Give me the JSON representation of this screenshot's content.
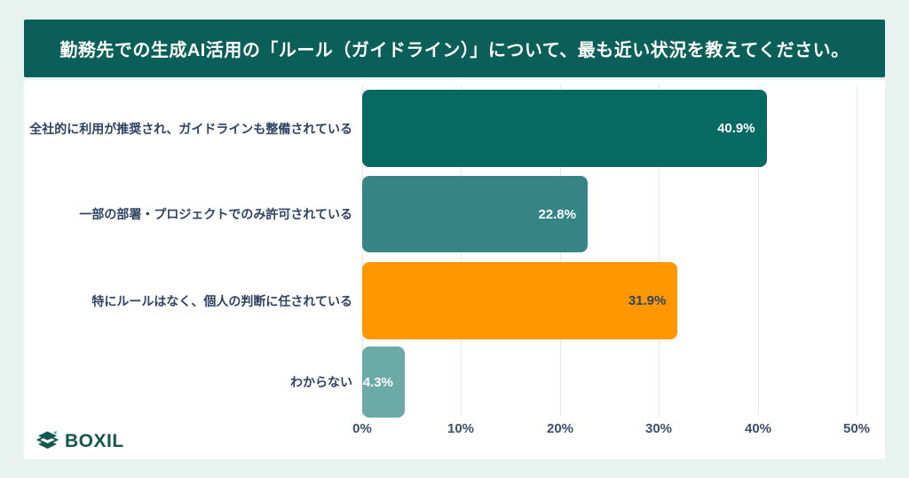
{
  "header": {
    "title": "勤務先での生成AI活用の「ルール（ガイドライン）」について、最も近い状況を教えてください。"
  },
  "chart_data": {
    "type": "bar",
    "orientation": "horizontal",
    "title": "勤務先での生成AI活用の「ルール（ガイドライン）」について、最も近い状況を教えてください。",
    "categories": [
      "全社的に利用が推奨され、ガイドラインも整備されている",
      "一部の部署・プロジェクトでのみ許可されている",
      "特にルールはなく、個人の判断に任されている",
      "わからない"
    ],
    "values": [
      40.9,
      22.8,
      31.9,
      4.3
    ],
    "value_labels": [
      "40.9%",
      "22.8%",
      "31.9%",
      "4.3%"
    ],
    "bar_colors": [
      "#066a63",
      "#368586",
      "#ff9800",
      "#6caaa8"
    ],
    "value_label_colors": [
      "#ffffff",
      "#ffffff",
      "#2e4263",
      "#ffffff"
    ],
    "xlabel": "",
    "ylabel": "",
    "xlim": [
      0,
      50
    ],
    "x_tick_labels": [
      "0%",
      "10%",
      "20%",
      "30%",
      "40%",
      "50%"
    ],
    "grid": true,
    "legend": false
  },
  "footer": {
    "brand": "BOXIL"
  },
  "colors": {
    "page_background": "#e8f3f0",
    "banner_background": "#0b5f59",
    "card_background": "#ffffff",
    "gridline": "#e7e7e7",
    "label_text": "#2e4263",
    "tick_text": "#3d4f6e",
    "brand_teal": "#14574f",
    "brand_accent": "#35b5a0"
  }
}
